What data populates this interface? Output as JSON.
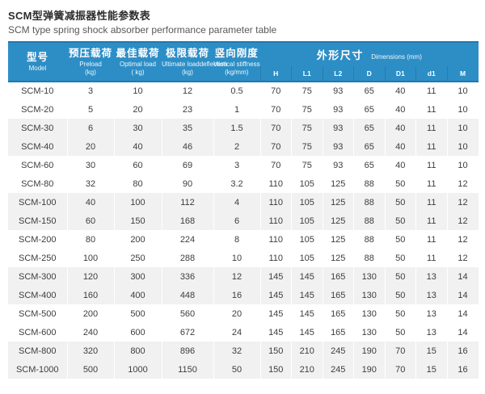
{
  "title": {
    "cn": "SCM型弹簧减振器性能参数表",
    "en": "SCM type spring shock absorber performance parameter table"
  },
  "colors": {
    "header_bg": "#2d8ec6",
    "header_border": "#1e79af",
    "band_bg": "#f1f1f1",
    "text": "#3d3d3d"
  },
  "chart_data": {
    "type": "table",
    "title": "SCM型弹簧减振器性能参数表",
    "subtitle": "SCM type spring shock absorber performance parameter table",
    "header": {
      "merged_columns": [
        {
          "cn": "型号",
          "en": "Model",
          "unit": ""
        },
        {
          "cn": "预压载荷",
          "en": "Preload",
          "unit": "(kg)"
        },
        {
          "cn": "最佳载荷",
          "en": "Optimal load",
          "unit": "( kg)"
        },
        {
          "cn": "极限载荷",
          "en": "Ultimate loaddeflection",
          "unit": "(kg)"
        },
        {
          "cn": "竖向刚度",
          "en": "Vertical stiffness",
          "unit": "(kg/mm)"
        }
      ],
      "dims_group": {
        "cn": "外形尺寸",
        "en": "Dimensions (mm)"
      },
      "dim_columns": [
        "H",
        "L1",
        "L2",
        "D",
        "D1",
        "d1",
        "M"
      ]
    },
    "rows": [
      [
        "SCM-10",
        "3",
        "10",
        "12",
        "0.5",
        "70",
        "75",
        "93",
        "65",
        "40",
        "11",
        "10"
      ],
      [
        "SCM-20",
        "5",
        "20",
        "23",
        "1",
        "70",
        "75",
        "93",
        "65",
        "40",
        "11",
        "10"
      ],
      [
        "SCM-30",
        "6",
        "30",
        "35",
        "1.5",
        "70",
        "75",
        "93",
        "65",
        "40",
        "11",
        "10"
      ],
      [
        "SCM-40",
        "20",
        "40",
        "46",
        "2",
        "70",
        "75",
        "93",
        "65",
        "40",
        "11",
        "10"
      ],
      [
        "SCM-60",
        "30",
        "60",
        "69",
        "3",
        "70",
        "75",
        "93",
        "65",
        "40",
        "11",
        "10"
      ],
      [
        "SCM-80",
        "32",
        "80",
        "90",
        "3.2",
        "110",
        "105",
        "125",
        "88",
        "50",
        "11",
        "12"
      ],
      [
        "SCM-100",
        "40",
        "100",
        "112",
        "4",
        "110",
        "105",
        "125",
        "88",
        "50",
        "11",
        "12"
      ],
      [
        "SCM-150",
        "60",
        "150",
        "168",
        "6",
        "110",
        "105",
        "125",
        "88",
        "50",
        "11",
        "12"
      ],
      [
        "SCM-200",
        "80",
        "200",
        "224",
        "8",
        "110",
        "105",
        "125",
        "88",
        "50",
        "11",
        "12"
      ],
      [
        "SCM-250",
        "100",
        "250",
        "288",
        "10",
        "110",
        "105",
        "125",
        "88",
        "50",
        "11",
        "12"
      ],
      [
        "SCM-300",
        "120",
        "300",
        "336",
        "12",
        "145",
        "145",
        "165",
        "130",
        "50",
        "13",
        "14"
      ],
      [
        "SCM-400",
        "160",
        "400",
        "448",
        "16",
        "145",
        "145",
        "165",
        "130",
        "50",
        "13",
        "14"
      ],
      [
        "SCM-500",
        "200",
        "500",
        "560",
        "20",
        "145",
        "145",
        "165",
        "130",
        "50",
        "13",
        "14"
      ],
      [
        "SCM-600",
        "240",
        "600",
        "672",
        "24",
        "145",
        "145",
        "165",
        "130",
        "50",
        "13",
        "14"
      ],
      [
        "SCM-800",
        "320",
        "800",
        "896",
        "32",
        "150",
        "210",
        "245",
        "190",
        "70",
        "15",
        "16"
      ],
      [
        "SCM-1000",
        "500",
        "1000",
        "1150",
        "50",
        "150",
        "210",
        "245",
        "190",
        "70",
        "15",
        "16"
      ]
    ]
  }
}
